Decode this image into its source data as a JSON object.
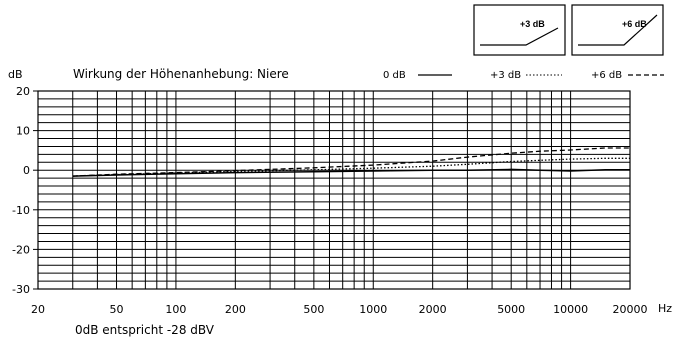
{
  "chart_data": {
    "type": "line",
    "title": "Wirkung der Höhenanhebung: Niere",
    "ylabel": "dB",
    "xlabel": "Hz",
    "x_scale": "log",
    "xlim": [
      20,
      20000
    ],
    "ylim": [
      -30,
      20
    ],
    "x_ticks": [
      20,
      50,
      100,
      200,
      500,
      1000,
      2000,
      5000,
      10000,
      20000
    ],
    "x_tick_labels": [
      "20",
      "50",
      "100",
      "200",
      "500",
      "1000",
      "2000",
      "5000",
      "10000",
      "20000"
    ],
    "y_ticks": [
      20,
      10,
      0,
      -10,
      -20,
      -30
    ],
    "y_tick_labels": [
      "20",
      "10",
      "0",
      "-10",
      "-20",
      "-30"
    ],
    "grid": true,
    "note": "0dB entspricht -28 dBV",
    "legend_position": "top",
    "series": [
      {
        "name": "0 dB",
        "style": "solid",
        "x": [
          30,
          50,
          100,
          200,
          500,
          1000,
          2000,
          3000,
          5000,
          7000,
          10000,
          15000,
          20000
        ],
        "y": [
          -1.5,
          -1.2,
          -0.9,
          -0.6,
          -0.4,
          -0.2,
          0.0,
          0.0,
          0.2,
          0.0,
          -0.2,
          0.1,
          0.1
        ]
      },
      {
        "name": "+3 dB",
        "style": "dotted",
        "x": [
          30,
          50,
          100,
          200,
          500,
          1000,
          2000,
          3000,
          5000,
          7000,
          10000,
          15000,
          20000
        ],
        "y": [
          -1.5,
          -1.1,
          -0.7,
          -0.3,
          0.1,
          0.5,
          1.0,
          1.5,
          2.2,
          2.5,
          2.8,
          3.0,
          3.0
        ]
      },
      {
        "name": "+6 dB",
        "style": "dashed",
        "x": [
          30,
          50,
          100,
          200,
          500,
          1000,
          2000,
          3000,
          5000,
          7000,
          10000,
          15000,
          20000
        ],
        "y": [
          -1.5,
          -1.0,
          -0.6,
          -0.1,
          0.6,
          1.3,
          2.3,
          3.3,
          4.3,
          4.8,
          5.1,
          5.6,
          5.6
        ]
      }
    ],
    "inset_boxes": [
      {
        "label": "+3 dB"
      },
      {
        "label": "+6 dB"
      }
    ]
  }
}
